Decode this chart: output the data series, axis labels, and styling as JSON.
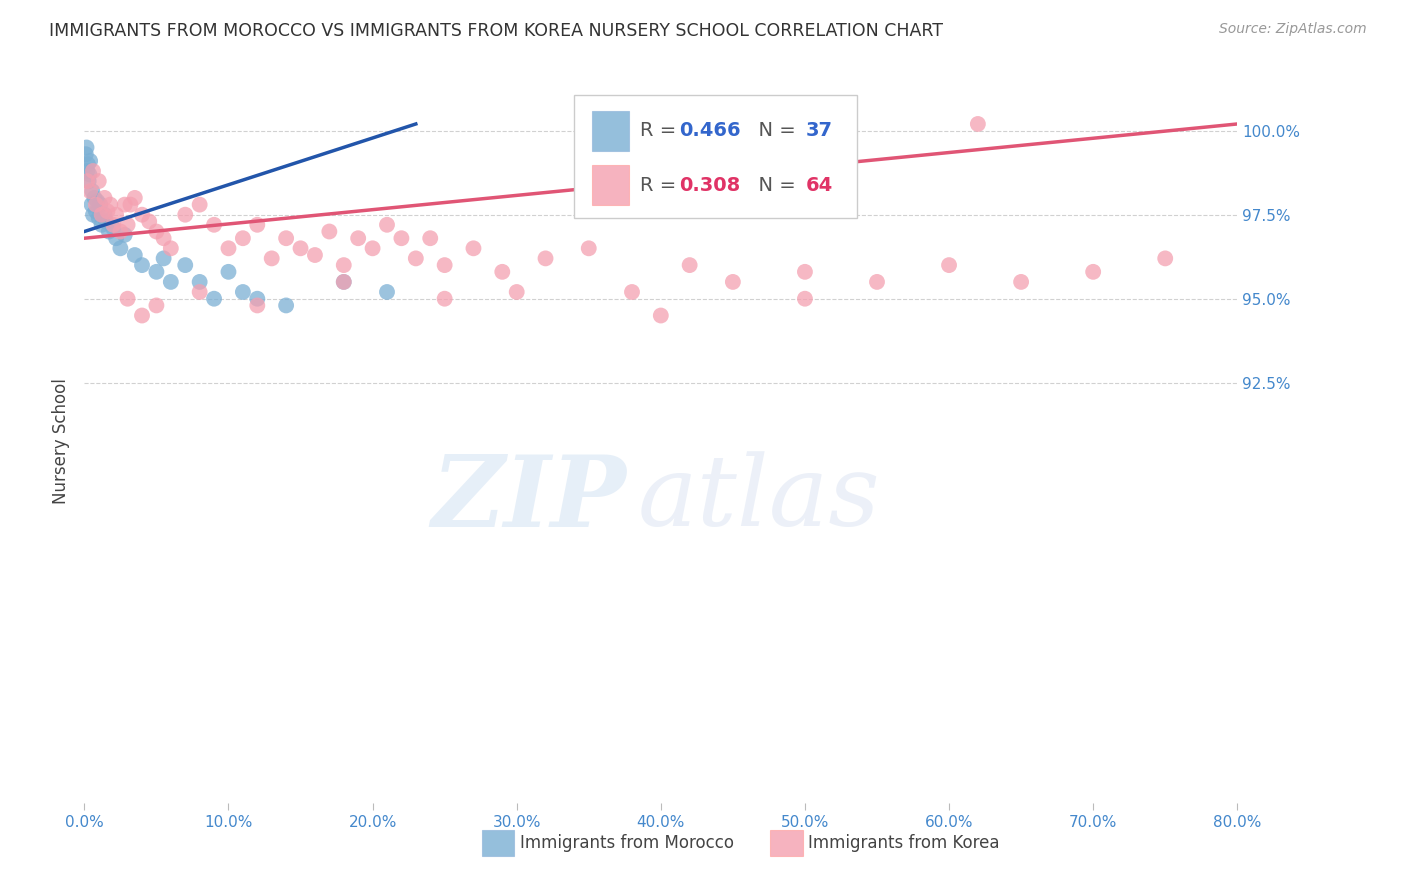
{
  "title": "IMMIGRANTS FROM MOROCCO VS IMMIGRANTS FROM KOREA NURSERY SCHOOL CORRELATION CHART",
  "source": "Source: ZipAtlas.com",
  "ylabel": "Nursery School",
  "xlim": [
    0.0,
    80.0
  ],
  "ylim": [
    80.0,
    101.5
  ],
  "yticks": [
    92.5,
    95.0,
    97.5,
    100.0
  ],
  "xticks": [
    0.0,
    10.0,
    20.0,
    30.0,
    40.0,
    50.0,
    60.0,
    70.0,
    80.0
  ],
  "morocco_color": "#7BAFD4",
  "korea_color": "#F4A0B0",
  "morocco_line_color": "#2255AA",
  "korea_line_color": "#E05575",
  "morocco_x": [
    0.1,
    0.15,
    0.2,
    0.25,
    0.3,
    0.35,
    0.4,
    0.5,
    0.55,
    0.6,
    0.7,
    0.8,
    0.9,
    1.0,
    1.1,
    1.2,
    1.4,
    1.5,
    1.7,
    2.0,
    2.2,
    2.5,
    2.8,
    3.5,
    4.0,
    5.0,
    5.5,
    6.0,
    7.0,
    8.0,
    9.0,
    10.0,
    11.0,
    12.0,
    14.0,
    18.0,
    21.0
  ],
  "morocco_y": [
    99.3,
    99.5,
    98.8,
    99.0,
    98.5,
    98.7,
    99.1,
    97.8,
    98.2,
    97.5,
    98.0,
    97.6,
    97.9,
    97.4,
    97.8,
    97.2,
    97.5,
    97.3,
    97.0,
    97.1,
    96.8,
    96.5,
    96.9,
    96.3,
    96.0,
    95.8,
    96.2,
    95.5,
    96.0,
    95.5,
    95.0,
    95.8,
    95.2,
    95.0,
    94.8,
    95.5,
    95.2
  ],
  "korea_x": [
    0.2,
    0.4,
    0.6,
    0.8,
    1.0,
    1.2,
    1.4,
    1.6,
    1.8,
    2.0,
    2.2,
    2.5,
    2.8,
    3.0,
    3.2,
    3.5,
    4.0,
    4.5,
    5.0,
    5.5,
    6.0,
    7.0,
    8.0,
    9.0,
    10.0,
    11.0,
    12.0,
    13.0,
    14.0,
    15.0,
    16.0,
    17.0,
    18.0,
    19.0,
    20.0,
    21.0,
    22.0,
    23.0,
    24.0,
    25.0,
    27.0,
    29.0,
    32.0,
    35.0,
    38.0,
    42.0,
    45.0,
    50.0,
    55.0,
    60.0,
    65.0,
    70.0,
    75.0,
    3.0,
    4.0,
    5.0,
    8.0,
    12.0,
    18.0,
    25.0,
    30.0,
    40.0,
    50.0,
    62.0
  ],
  "korea_y": [
    98.5,
    98.2,
    98.8,
    97.8,
    98.5,
    97.5,
    98.0,
    97.6,
    97.8,
    97.2,
    97.5,
    97.0,
    97.8,
    97.2,
    97.8,
    98.0,
    97.5,
    97.3,
    97.0,
    96.8,
    96.5,
    97.5,
    97.8,
    97.2,
    96.5,
    96.8,
    97.2,
    96.2,
    96.8,
    96.5,
    96.3,
    97.0,
    96.0,
    96.8,
    96.5,
    97.2,
    96.8,
    96.2,
    96.8,
    96.0,
    96.5,
    95.8,
    96.2,
    96.5,
    95.2,
    96.0,
    95.5,
    95.8,
    95.5,
    96.0,
    95.5,
    95.8,
    96.2,
    95.0,
    94.5,
    94.8,
    95.2,
    94.8,
    95.5,
    95.0,
    95.2,
    94.5,
    95.0,
    100.2
  ]
}
